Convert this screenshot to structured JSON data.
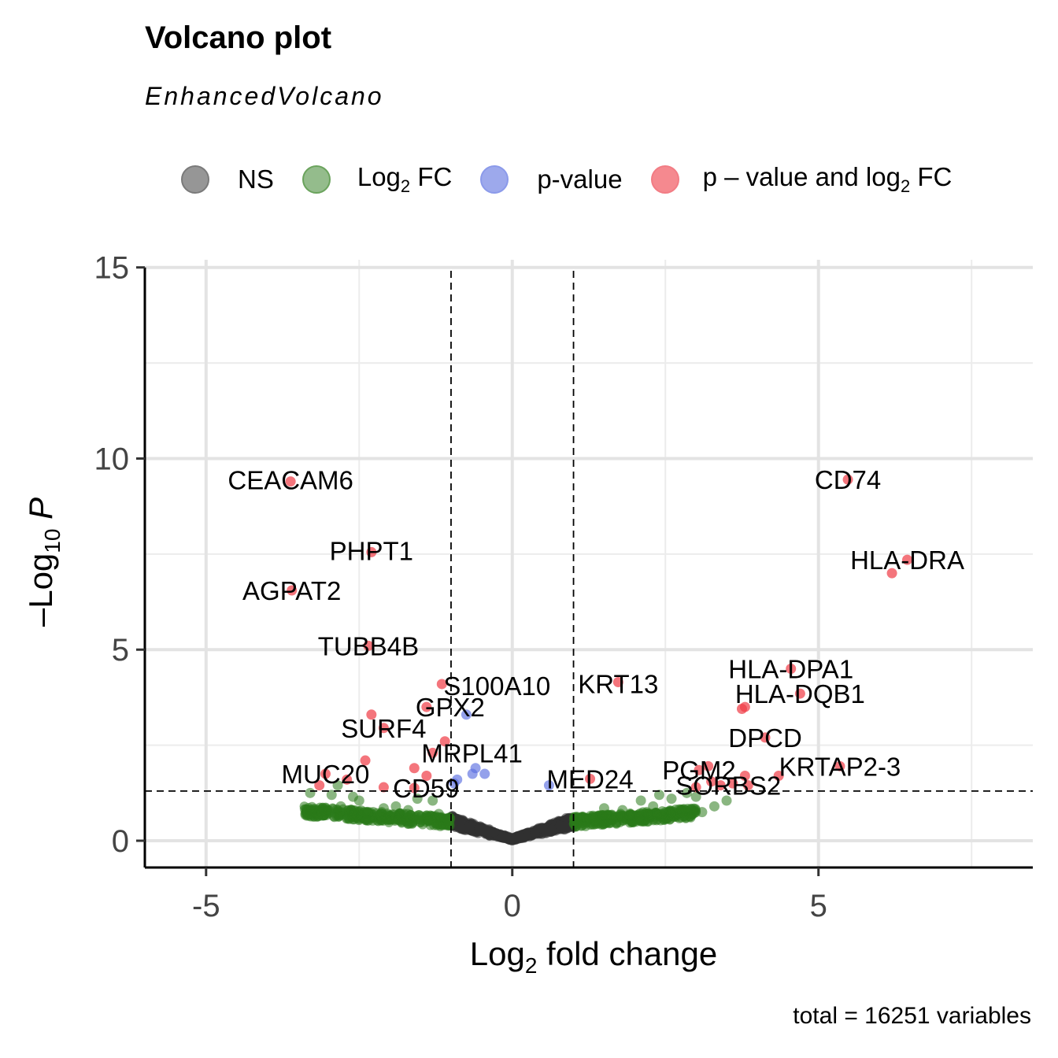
{
  "title": "Volcano plot",
  "subtitle": "EnhancedVolcano",
  "caption": "total = 16251 variables",
  "legend": {
    "items": [
      {
        "label": "NS",
        "color": "#808080"
      },
      {
        "label_main": "Log",
        "label_sub": "2",
        "label_tail": " FC",
        "color": "#3a8a2a"
      },
      {
        "label": "p-value",
        "color": "#5b6fe0"
      },
      {
        "label_main": "p – value and log",
        "label_sub": "2",
        "label_tail": " FC",
        "color": "#ef3a45"
      }
    ]
  },
  "chart_data": {
    "type": "scatter",
    "xlabel": "Log2 fold change",
    "ylabel": "-Log10 P",
    "xlim": [
      -6,
      8.5
    ],
    "ylim": [
      -0.7,
      15.2
    ],
    "x_ticks": [
      -5,
      0,
      5
    ],
    "y_ticks": [
      0,
      5,
      10,
      15
    ],
    "cutoffs": {
      "log2fc": [
        -1,
        1
      ],
      "neg_log10_p": 1.3
    },
    "grid": true,
    "colors": {
      "NS": "#404040",
      "FC": "#2a7a1a",
      "P": "#5b6fe0",
      "FC_P": "#ef3a45"
    },
    "labeled_points": [
      {
        "gene": "CEACAM6",
        "x": -3.62,
        "y": 9.4
      },
      {
        "gene": "PHPT1",
        "x": -2.3,
        "y": 7.55
      },
      {
        "gene": "AGPAT2",
        "x": -3.6,
        "y": 6.55
      },
      {
        "gene": "TUBB4B",
        "x": -2.35,
        "y": 5.1
      },
      {
        "gene": "S100A10",
        "x": -1.15,
        "y": 4.1
      },
      {
        "gene": "GPX2",
        "x": -1.4,
        "y": 3.5
      },
      {
        "gene": "SURF4",
        "x": -2.1,
        "y": 2.95
      },
      {
        "gene": "MRPL41",
        "x": -1.3,
        "y": 2.3
      },
      {
        "gene": "MUC20",
        "x": -3.05,
        "y": 1.75
      },
      {
        "gene": "CD59",
        "x": -1.6,
        "y": 1.38
      },
      {
        "gene": "KRT13",
        "x": 1.73,
        "y": 4.15
      },
      {
        "gene": "MED24",
        "x": 1.27,
        "y": 1.62
      },
      {
        "gene": "CD74",
        "x": 5.48,
        "y": 9.45
      },
      {
        "gene": "HLA-DRA",
        "x": 6.45,
        "y": 7.35
      },
      {
        "gene": "HLA-DPA1",
        "x": 4.55,
        "y": 4.5
      },
      {
        "gene": "HLA-DQB1",
        "x": 4.7,
        "y": 3.85
      },
      {
        "gene": "DPCD",
        "x": 4.13,
        "y": 2.7
      },
      {
        "gene": "KRTAP2-3",
        "x": 5.35,
        "y": 1.95
      },
      {
        "gene": "PGM2",
        "x": 3.05,
        "y": 1.85
      },
      {
        "gene": "SORBS2",
        "x": 3.4,
        "y": 1.45
      }
    ],
    "extra_sig_points": [
      {
        "x": 6.2,
        "y": 7.0
      },
      {
        "x": 3.8,
        "y": 3.5
      },
      {
        "x": 3.75,
        "y": 3.45
      },
      {
        "x": -2.3,
        "y": 3.3
      },
      {
        "x": -2.4,
        "y": 2.1
      },
      {
        "x": -1.1,
        "y": 2.6
      },
      {
        "x": -1.6,
        "y": 1.9
      },
      {
        "x": -1.4,
        "y": 1.7
      },
      {
        "x": -2.7,
        "y": 1.6
      },
      {
        "x": -3.15,
        "y": 1.45
      },
      {
        "x": -2.1,
        "y": 1.4
      },
      {
        "x": 4.35,
        "y": 1.7
      },
      {
        "x": 3.8,
        "y": 1.7
      },
      {
        "x": 3.2,
        "y": 1.95
      },
      {
        "x": 3.85,
        "y": 1.45
      },
      {
        "x": 3.25,
        "y": 1.55
      },
      {
        "x": 3.6,
        "y": 1.5
      },
      {
        "x": 3.0,
        "y": 1.4
      }
    ],
    "p_only_points": [
      {
        "x": -0.75,
        "y": 3.3
      },
      {
        "x": -0.6,
        "y": 1.9
      },
      {
        "x": -0.45,
        "y": 1.75
      },
      {
        "x": -0.65,
        "y": 1.75
      },
      {
        "x": -0.9,
        "y": 1.6
      },
      {
        "x": -0.95,
        "y": 1.5
      },
      {
        "x": 0.6,
        "y": 1.45
      }
    ],
    "fc_only_points": [
      {
        "x": -3.3,
        "y": 1.25
      },
      {
        "x": -2.85,
        "y": 1.45
      },
      {
        "x": -2.95,
        "y": 1.2
      },
      {
        "x": -2.8,
        "y": 0.9
      },
      {
        "x": -2.5,
        "y": 1.05
      },
      {
        "x": -2.4,
        "y": 0.75
      },
      {
        "x": -2.1,
        "y": 0.85
      },
      {
        "x": -1.9,
        "y": 0.9
      },
      {
        "x": -1.7,
        "y": 0.8
      },
      {
        "x": -1.55,
        "y": 1.1
      },
      {
        "x": -1.3,
        "y": 1.05
      },
      {
        "x": -1.2,
        "y": 0.7
      },
      {
        "x": -3.0,
        "y": 0.8
      },
      {
        "x": -2.6,
        "y": 1.15
      },
      {
        "x": 2.1,
        "y": 1.05
      },
      {
        "x": 2.3,
        "y": 0.9
      },
      {
        "x": 2.6,
        "y": 1.1
      },
      {
        "x": 2.85,
        "y": 1.25
      },
      {
        "x": 3.0,
        "y": 1.15
      },
      {
        "x": 3.3,
        "y": 0.9
      },
      {
        "x": 3.1,
        "y": 0.75
      },
      {
        "x": 3.5,
        "y": 1.05
      },
      {
        "x": 1.5,
        "y": 0.85
      },
      {
        "x": 1.8,
        "y": 0.8
      },
      {
        "x": 2.4,
        "y": 1.2
      }
    ]
  }
}
